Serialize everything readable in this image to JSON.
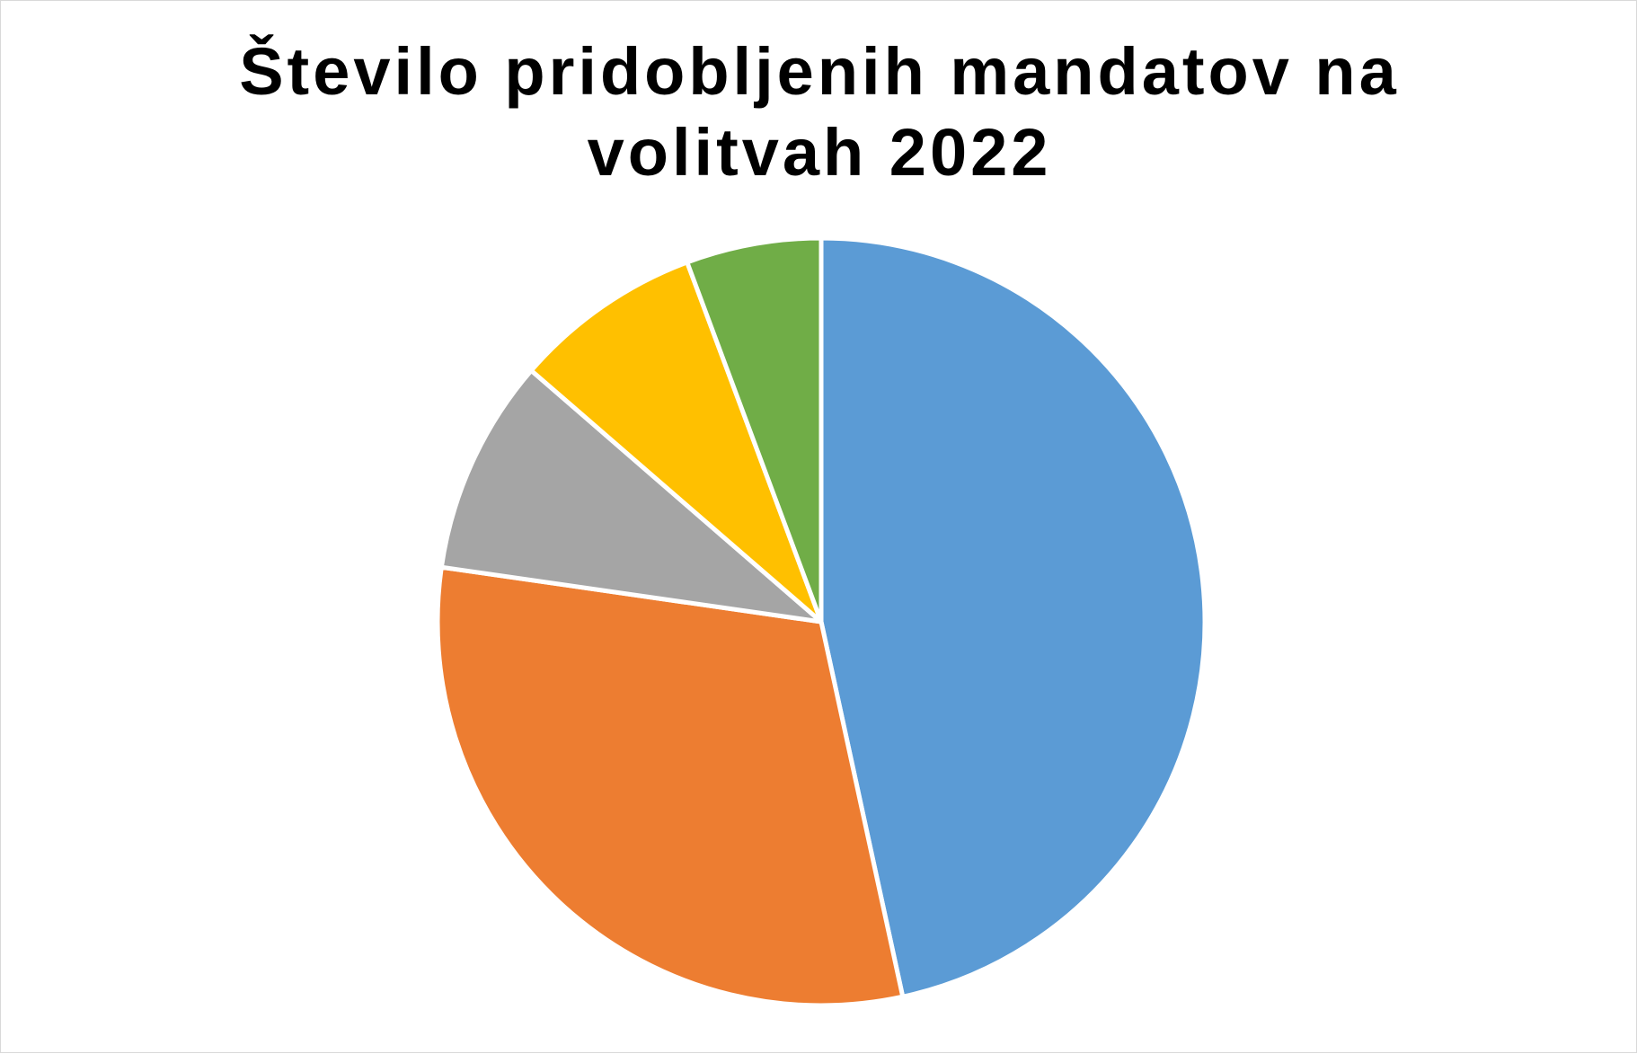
{
  "chart_data": {
    "type": "pie",
    "title_lines": [
      "Število pridobljenih mandatov na",
      "volitvah 2022"
    ],
    "start_angle_deg": 0,
    "direction": "clockwise",
    "slices": [
      {
        "value": 41,
        "color": "#5B9BD5"
      },
      {
        "value": 27,
        "color": "#ED7D31"
      },
      {
        "value": 8,
        "color": "#A5A5A5"
      },
      {
        "value": 7,
        "color": "#FFC000"
      },
      {
        "value": 5,
        "color": "#70AD47"
      }
    ],
    "legend": "none",
    "data_labels": "none"
  }
}
